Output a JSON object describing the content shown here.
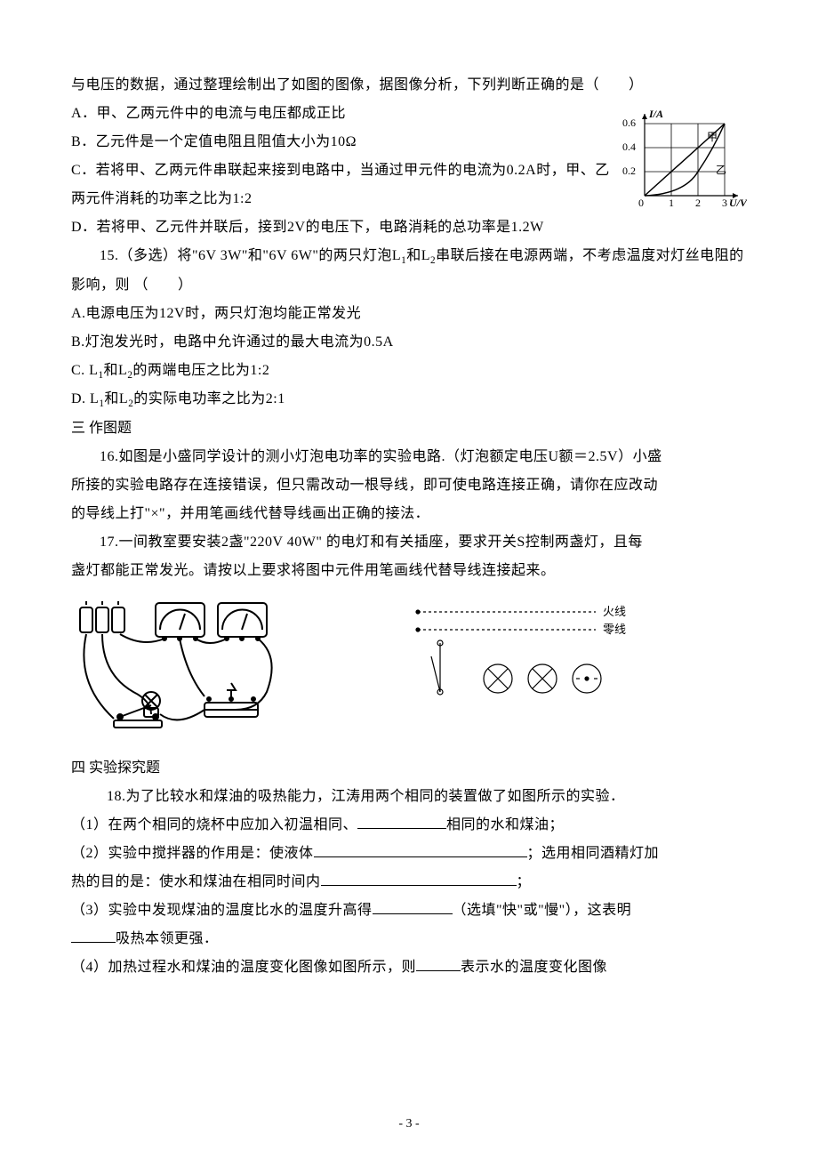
{
  "q14": {
    "stem": "与电压的数据，通过整理绘制出了如图的图像，据图像分析，下列判断正确的是（　　）",
    "optA": "A．甲、乙两元件中的电流与电压都成正比",
    "optB": "B．乙元件是一个定值电阻且阻值大小为10Ω",
    "optC": "C．若将甲、乙两元件串联起来接到电路中，当通过甲元件的电流为0.2A时，甲、乙两元件消耗的功率之比为1:2",
    "optD": "D．若将甲、乙元件并联后，接到2V的电压下，电路消耗的总功率是1.2W"
  },
  "chart": {
    "type": "line",
    "xlabel": "U/V",
    "ylabel": "I/A",
    "xlim": [
      0,
      3
    ],
    "ylim": [
      0,
      0.6
    ],
    "xticks": [
      1,
      2,
      3
    ],
    "yticks": [
      0.2,
      0.4,
      0.6
    ],
    "grid_color": "#000000",
    "background": "#ffffff",
    "series": [
      {
        "name": "甲",
        "type": "line",
        "points": [
          [
            0,
            0
          ],
          [
            3,
            0.6
          ]
        ],
        "label_pos": [
          2.5,
          0.5
        ],
        "color": "#000000"
      },
      {
        "name": "乙",
        "type": "curve",
        "points": [
          [
            0,
            0
          ],
          [
            1,
            0.05
          ],
          [
            2,
            0.2
          ],
          [
            2.5,
            0.35
          ],
          [
            3,
            0.6
          ]
        ],
        "label_pos": [
          2.7,
          0.25
        ],
        "color": "#000000"
      }
    ]
  },
  "q15": {
    "stem_part1": "15.（多选）将\"6V 3W\"和\"6V 6W\"的两只灯泡L",
    "stem_sub1": "1",
    "stem_part2": "和L",
    "stem_sub2": "2",
    "stem_part3": "串联后接在电源两端，不考虑温度对灯丝电阻的影响，则 （　　）",
    "optA": "A.电源电压为12V时，两只灯泡均能正常发光",
    "optB": "B.灯泡发光时，电路中允许通过的最大电流为0.5A",
    "optC_p1": "C. L",
    "optC_s1": "1",
    "optC_p2": "和L",
    "optC_s2": "2",
    "optC_p3": "的两端电压之比为1:2",
    "optD_p1": "D. L",
    "optD_s1": "1",
    "optD_p2": "和L",
    "optD_s2": "2",
    "optD_p3": "的实际电功率之比为2:1"
  },
  "section3": "三 作图题",
  "q16": {
    "l1": "16.如图是小盛同学设计的测小灯泡电功率的实验电路.（灯泡额定电压U额＝2.5V）小盛",
    "l2": "所接的实验电路存在连接错误，但只需改动一根导线，即可使电路连接正确，请你在应改动",
    "l3": "的导线上打\"×\"，并用笔画线代替导线画出正确的接法．"
  },
  "q17": {
    "l1": "17.一间教室要安装2盏\"220V 40W\" 的电灯和有关插座，要求开关S控制两盏灯，且每",
    "l2": "盏灯都能正常发光。请按以上要求将图中元件用笔画线代替导线连接起来。"
  },
  "household": {
    "live": "火线",
    "neutral": "零线"
  },
  "section4": "四 实验探究题",
  "q18": {
    "stem": "18.为了比较水和煤油的吸热能力，江涛用两个相同的装置做了如图所示的实验．",
    "p1_a": "（1）在两个相同的烧杯中应加入初温相同、",
    "p1_b": "相同的水和煤油；",
    "p2_a": "（2）实验中搅拌器的作用是：使液体",
    "p2_b": "；选用相同酒精灯加",
    "p2_c": "热的目的是：使水和煤油在相同时间内",
    "p2_d": "；",
    "p3_a": "（3）实验中发现煤油的温度比水的温度升高得",
    "p3_b": "（选填\"快\"或\"慢\"），这表明",
    "p3_c": "吸热本领更强．",
    "p4_a": "（4）加热过程水和煤油的温度变化图像如图所示，则",
    "p4_b": "表示水的温度变化图像"
  },
  "blanks": {
    "w1": 100,
    "w2": 240,
    "w3": 220,
    "w4": 90,
    "w5": 50,
    "w6": 50
  },
  "page_number": "- 3 -"
}
